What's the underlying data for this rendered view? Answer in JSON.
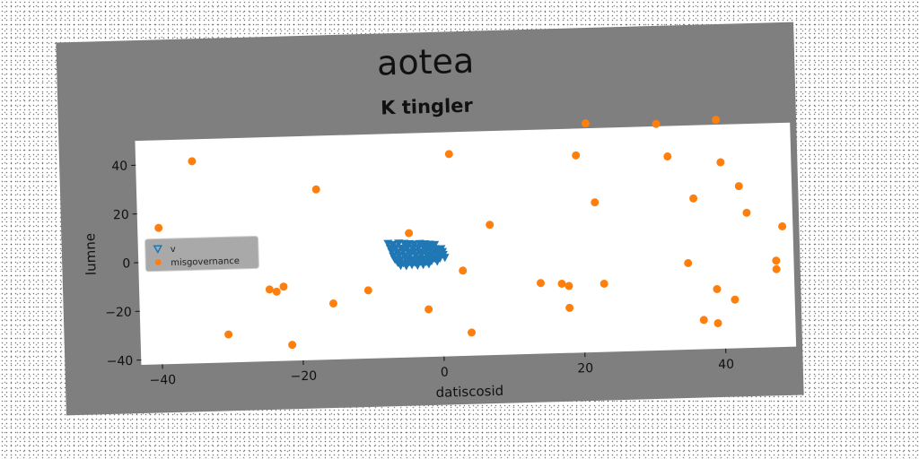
{
  "chart_data": {
    "type": "scatter",
    "title": "aotea",
    "subtitle": "K tingler",
    "xlabel": "datiscosid",
    "ylabel": "lumne",
    "xlim": [
      -43,
      50
    ],
    "ylim": [
      -42,
      50
    ],
    "xticks": [
      -40,
      -20,
      0,
      20,
      40
    ],
    "yticks": [
      -40,
      -20,
      0,
      20,
      40
    ],
    "xtick_labels": [
      "−40",
      "−20",
      "0",
      "20",
      "40"
    ],
    "ytick_labels": [
      "−40",
      "−20",
      "0",
      "20",
      "40"
    ],
    "grid": false,
    "legend_position": "center-left",
    "series": [
      {
        "name": "v",
        "marker": "triangle-down",
        "color": "#1f77b4",
        "points": [
          [
            -7.5,
            5
          ],
          [
            -6.8,
            4.5
          ],
          [
            -6,
            5
          ],
          [
            -5.2,
            4.8
          ],
          [
            -4.5,
            4.6
          ],
          [
            -3.8,
            4.4
          ],
          [
            -3,
            4.6
          ],
          [
            -2.3,
            4.4
          ],
          [
            -1.6,
            4.2
          ],
          [
            -0.9,
            4
          ],
          [
            -7.2,
            3
          ],
          [
            -6.4,
            3.2
          ],
          [
            -5.6,
            2.9
          ],
          [
            -4.8,
            3.1
          ],
          [
            -4,
            2.8
          ],
          [
            -3.2,
            3
          ],
          [
            -2.4,
            2.7
          ],
          [
            -1.6,
            2.5
          ],
          [
            -0.8,
            2.3
          ],
          [
            0,
            2.2
          ],
          [
            -7,
            1.5
          ],
          [
            -6.2,
            1.3
          ],
          [
            -5.4,
            1.6
          ],
          [
            -4.6,
            1.2
          ],
          [
            -3.8,
            1.4
          ],
          [
            -3,
            1.1
          ],
          [
            -2.2,
            1.3
          ],
          [
            -1.4,
            1
          ],
          [
            -0.6,
            0.9
          ],
          [
            0.2,
            1
          ],
          [
            -6.8,
            -0.2
          ],
          [
            -6,
            0
          ],
          [
            -5.2,
            -0.3
          ],
          [
            -4.4,
            0.1
          ],
          [
            -3.6,
            -0.2
          ],
          [
            -2.8,
            0
          ],
          [
            -2,
            -0.3
          ],
          [
            -1.2,
            -0.1
          ],
          [
            -0.4,
            -0.4
          ],
          [
            0.3,
            -0.2
          ],
          [
            -6.6,
            -1.6
          ],
          [
            -5.8,
            -1.8
          ],
          [
            -5,
            -1.5
          ],
          [
            -4.2,
            -1.9
          ],
          [
            -3.4,
            -1.6
          ],
          [
            -2.6,
            -1.8
          ],
          [
            -1.8,
            -1.5
          ],
          [
            -1,
            -1.7
          ],
          [
            -0.2,
            -1.6
          ],
          [
            0.5,
            -1.4
          ],
          [
            -6.2,
            -3
          ],
          [
            -5.4,
            -3.2
          ],
          [
            -4.6,
            -2.9
          ],
          [
            -3.8,
            -3.1
          ],
          [
            -3,
            -2.8
          ],
          [
            -2.2,
            -3
          ],
          [
            -1.4,
            -2.7
          ],
          [
            -0.6,
            -2.9
          ],
          [
            -5.8,
            -4.2
          ],
          [
            -5,
            -4.4
          ],
          [
            -4.2,
            -4
          ],
          [
            -3.4,
            -4.3
          ],
          [
            -2.6,
            -4.1
          ],
          [
            -1.8,
            -3.9
          ]
        ]
      },
      {
        "name": "misgovernance",
        "marker": "circle",
        "color": "#ff7f0e",
        "points": [
          [
            -35,
            41
          ],
          [
            -40,
            14
          ],
          [
            -17.5,
            28
          ],
          [
            -24.5,
            -12.5
          ],
          [
            -23.5,
            -13.5
          ],
          [
            -22.5,
            -11.5
          ],
          [
            -15.5,
            -19
          ],
          [
            -10.5,
            -14
          ],
          [
            -30.5,
            -30.5
          ],
          [
            -21.5,
            -35.5
          ],
          [
            -4.5,
            9
          ],
          [
            1.5,
            41
          ],
          [
            3,
            -7
          ],
          [
            -2,
            -22.5
          ],
          [
            4,
            -32.5
          ],
          [
            7,
            11.5
          ],
          [
            14,
            -13
          ],
          [
            17,
            -13.5
          ],
          [
            18,
            -14.5
          ],
          [
            18,
            -23.5
          ],
          [
            19.5,
            39
          ],
          [
            21,
            52
          ],
          [
            22,
            19.5
          ],
          [
            23,
            -14
          ],
          [
            31,
            51
          ],
          [
            32.5,
            37.5
          ],
          [
            35,
            -6.5
          ],
          [
            36,
            20
          ],
          [
            37,
            -30
          ],
          [
            39,
            -31.5
          ],
          [
            39,
            -17.5
          ],
          [
            39.5,
            52
          ],
          [
            40,
            34.5
          ],
          [
            41.5,
            -22
          ],
          [
            42.5,
            24.5
          ],
          [
            43.5,
            13.5
          ],
          [
            47.5,
            -6.5
          ],
          [
            47.5,
            -10
          ],
          [
            48.5,
            7.5
          ]
        ]
      }
    ]
  }
}
